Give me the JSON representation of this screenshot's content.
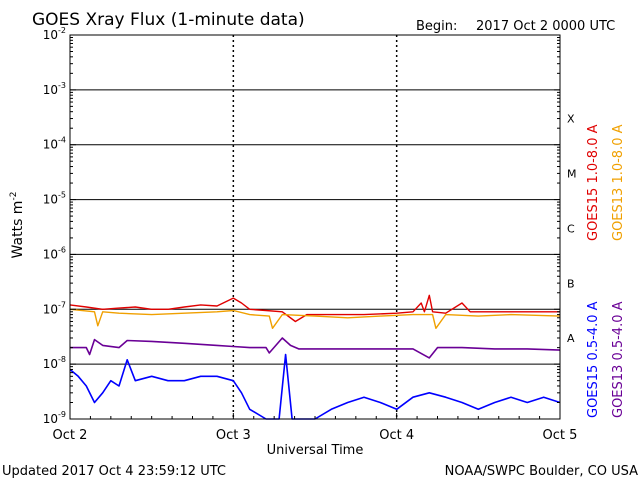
{
  "header": {
    "title": "GOES Xray Flux (1-minute data)",
    "begin_label": "Begin:",
    "begin_value": "2017 Oct 2 0000 UTC"
  },
  "footer": {
    "updated": "Updated 2017 Oct  4 23:59:12 UTC",
    "credit": "NOAA/SWPC Boulder, CO USA"
  },
  "colors": {
    "goes15_long": "#e00000",
    "goes13_long": "#f0a000",
    "goes15_short": "#0000ff",
    "goes13_short": "#6a0096"
  },
  "chart_data": {
    "type": "line",
    "xlabel": "Universal Time",
    "ylabel_base": "Watts m",
    "ylabel_exp": "-2",
    "x_ticks": [
      "Oct 2",
      "Oct 3",
      "Oct 4",
      "Oct 5"
    ],
    "xlim_days": [
      0,
      3
    ],
    "y_scale": "log",
    "ylim_exp": [
      -9,
      -2
    ],
    "y_tick_exps": [
      "-2",
      "-3",
      "-4",
      "-5",
      "-6",
      "-7",
      "-8",
      "-9"
    ],
    "y_tick_base": "10",
    "flare_classes": [
      {
        "label": "X",
        "exp": -4
      },
      {
        "label": "M",
        "exp": -5
      },
      {
        "label": "C",
        "exp": -6
      },
      {
        "label": "B",
        "exp": -7
      },
      {
        "label": "A",
        "exp": -8
      }
    ],
    "grid": true,
    "series": [
      {
        "name": "GOES15 1.0-8.0 A",
        "color": "#e00000",
        "points": [
          [
            0,
            1.2e-07
          ],
          [
            0.1,
            1.1e-07
          ],
          [
            0.2,
            1e-07
          ],
          [
            0.3,
            1.05e-07
          ],
          [
            0.4,
            1.1e-07
          ],
          [
            0.5,
            1e-07
          ],
          [
            0.6,
            1e-07
          ],
          [
            0.7,
            1.1e-07
          ],
          [
            0.8,
            1.2e-07
          ],
          [
            0.9,
            1.15e-07
          ],
          [
            1.0,
            1.6e-07
          ],
          [
            1.05,
            1.3e-07
          ],
          [
            1.1,
            1e-07
          ],
          [
            1.2,
            9.5e-08
          ],
          [
            1.3,
            9e-08
          ],
          [
            1.38,
            6e-08
          ],
          [
            1.45,
            8e-08
          ],
          [
            1.6,
            8e-08
          ],
          [
            1.8,
            8e-08
          ],
          [
            2.0,
            8.5e-08
          ],
          [
            2.1,
            9e-08
          ],
          [
            2.15,
            1.3e-07
          ],
          [
            2.17,
            9e-08
          ],
          [
            2.2,
            1.8e-07
          ],
          [
            2.22,
            9e-08
          ],
          [
            2.3,
            8.5e-08
          ],
          [
            2.4,
            1.3e-07
          ],
          [
            2.45,
            9e-08
          ],
          [
            2.6,
            9e-08
          ],
          [
            2.8,
            9e-08
          ],
          [
            3.0,
            9e-08
          ]
        ]
      },
      {
        "name": "GOES13 1.0-8.0 A",
        "color": "#f0a000",
        "points": [
          [
            0,
            1e-07
          ],
          [
            0.15,
            9e-08
          ],
          [
            0.17,
            5e-08
          ],
          [
            0.2,
            9e-08
          ],
          [
            0.3,
            8.5e-08
          ],
          [
            0.5,
            8e-08
          ],
          [
            0.7,
            8.5e-08
          ],
          [
            0.9,
            9e-08
          ],
          [
            1.0,
            9.5e-08
          ],
          [
            1.1,
            8e-08
          ],
          [
            1.22,
            7.5e-08
          ],
          [
            1.24,
            4.5e-08
          ],
          [
            1.3,
            8e-08
          ],
          [
            1.5,
            7.5e-08
          ],
          [
            1.7,
            7e-08
          ],
          [
            1.9,
            7.5e-08
          ],
          [
            2.1,
            8e-08
          ],
          [
            2.22,
            8e-08
          ],
          [
            2.24,
            4.5e-08
          ],
          [
            2.3,
            8e-08
          ],
          [
            2.5,
            7.5e-08
          ],
          [
            2.7,
            8e-08
          ],
          [
            3.0,
            7.5e-08
          ]
        ]
      },
      {
        "name": "GOES15 0.5-4.0 A",
        "color": "#0000ff",
        "points": [
          [
            0,
            8e-09
          ],
          [
            0.05,
            6e-09
          ],
          [
            0.1,
            4e-09
          ],
          [
            0.15,
            2e-09
          ],
          [
            0.2,
            3e-09
          ],
          [
            0.25,
            5e-09
          ],
          [
            0.3,
            4e-09
          ],
          [
            0.35,
            1.2e-08
          ],
          [
            0.4,
            5e-09
          ],
          [
            0.5,
            6e-09
          ],
          [
            0.6,
            5e-09
          ],
          [
            0.7,
            5e-09
          ],
          [
            0.8,
            6e-09
          ],
          [
            0.9,
            6e-09
          ],
          [
            1.0,
            5e-09
          ],
          [
            1.05,
            3e-09
          ],
          [
            1.1,
            1.5e-09
          ],
          [
            1.2,
            1e-09
          ],
          [
            1.28,
            1e-09
          ],
          [
            1.32,
            1.5e-08
          ],
          [
            1.36,
            1e-09
          ],
          [
            1.5,
            1e-09
          ],
          [
            1.6,
            1.5e-09
          ],
          [
            1.7,
            2e-09
          ],
          [
            1.8,
            2.5e-09
          ],
          [
            1.9,
            2e-09
          ],
          [
            2.0,
            1.5e-09
          ],
          [
            2.1,
            2.5e-09
          ],
          [
            2.2,
            3e-09
          ],
          [
            2.3,
            2.5e-09
          ],
          [
            2.4,
            2e-09
          ],
          [
            2.5,
            1.5e-09
          ],
          [
            2.6,
            2e-09
          ],
          [
            2.7,
            2.5e-09
          ],
          [
            2.8,
            2e-09
          ],
          [
            2.9,
            2.5e-09
          ],
          [
            3.0,
            2e-09
          ]
        ]
      },
      {
        "name": "GOES13 0.5-4.0 A",
        "color": "#6a0096",
        "points": [
          [
            0,
            2e-08
          ],
          [
            0.1,
            2e-08
          ],
          [
            0.12,
            1.5e-08
          ],
          [
            0.15,
            2.8e-08
          ],
          [
            0.2,
            2.2e-08
          ],
          [
            0.3,
            2e-08
          ],
          [
            0.35,
            2.7e-08
          ],
          [
            0.5,
            2.6e-08
          ],
          [
            0.7,
            2.4e-08
          ],
          [
            0.9,
            2.2e-08
          ],
          [
            1.0,
            2.1e-08
          ],
          [
            1.1,
            2e-08
          ],
          [
            1.2,
            2e-08
          ],
          [
            1.22,
            1.6e-08
          ],
          [
            1.3,
            3e-08
          ],
          [
            1.35,
            2.2e-08
          ],
          [
            1.4,
            1.9e-08
          ],
          [
            1.6,
            1.9e-08
          ],
          [
            1.8,
            1.9e-08
          ],
          [
            2.0,
            1.9e-08
          ],
          [
            2.1,
            1.9e-08
          ],
          [
            2.2,
            1.3e-08
          ],
          [
            2.25,
            2e-08
          ],
          [
            2.4,
            2e-08
          ],
          [
            2.6,
            1.9e-08
          ],
          [
            2.8,
            1.9e-08
          ],
          [
            3.0,
            1.8e-08
          ]
        ]
      }
    ]
  }
}
